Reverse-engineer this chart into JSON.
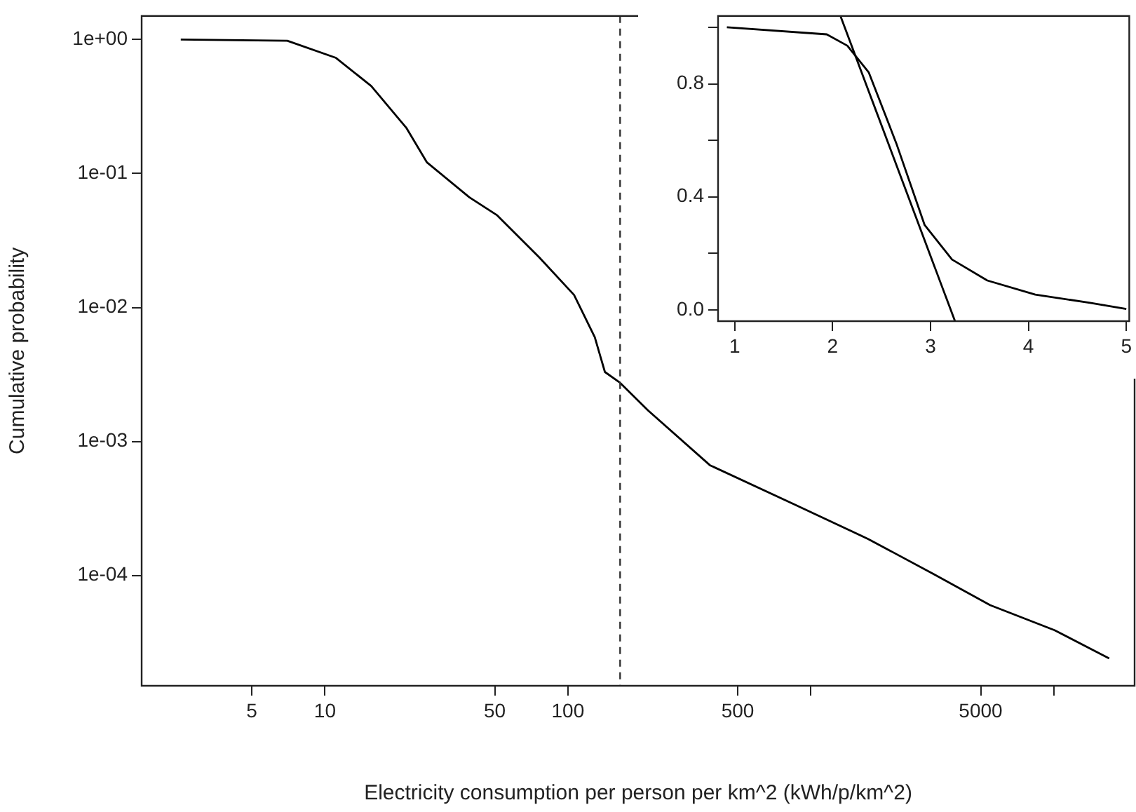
{
  "chart_data": [
    {
      "type": "line",
      "xlabel": "Electricity consumption per person per km^2 (kWh/p/km^2)",
      "ylabel": "Cumulative probability",
      "log": "xy",
      "marker": "none",
      "line_style": "solid",
      "xlim": [
        1.76,
        21500
      ],
      "xticks": [
        5,
        10,
        50,
        100,
        500,
        {
          "value": 1000,
          "label": null
        },
        5000,
        {
          "value": 10000,
          "label": null
        }
      ],
      "ylim": [
        1.5e-05,
        1.5
      ],
      "yticks": [
        {
          "value": 1,
          "label": "1e+00"
        },
        {
          "value": 0.1,
          "label": "1e-01"
        },
        {
          "value": 0.01,
          "label": "1e-02"
        },
        {
          "value": 0.001,
          "label": "1e-03"
        },
        {
          "value": 0.0001,
          "label": "1e-04"
        }
      ],
      "ref_lines": [
        {
          "axis": "x",
          "value": 164,
          "line_style": "dashed",
          "color": "#333333"
        }
      ],
      "x": [
        2.55,
        7.0,
        11.1,
        15.5,
        21.6,
        26.3,
        39.3,
        51.2,
        76.2,
        106,
        129,
        142,
        164,
        214,
        384,
        851,
        1722,
        3212,
        5470,
        10070,
        16900
      ],
      "series": [
        {
          "color": "#000000",
          "values": [
            1,
            0.98,
            0.73,
            0.45,
            0.22,
            0.121,
            0.0665,
            0.0487,
            0.0237,
            0.0124,
            0.006,
            0.0033,
            0.00274,
            0.0017,
            0.000665,
            0.00034,
            0.000187,
            0.000102,
            6e-05,
            3.9e-05,
            2.4e-05
          ]
        }
      ]
    },
    {
      "type": "line",
      "marker": "none",
      "line_style": "solid",
      "xlim": [
        0.83,
        5.03
      ],
      "xticks": [
        1,
        2,
        3,
        4,
        5
      ],
      "ylim": [
        -0.04,
        1.04
      ],
      "yticks": [
        {
          "value": 0,
          "label": "0.0"
        },
        {
          "value": 0.2,
          "label": null
        },
        {
          "value": 0.4,
          "label": "0.4"
        },
        {
          "value": 0.6,
          "label": null
        },
        {
          "value": 0.8,
          "label": "0.8"
        },
        {
          "value": 1,
          "label": null
        }
      ],
      "series": [
        {
          "color": "#000000",
          "x": [
            0.92,
            1.94,
            2.15,
            2.37,
            2.65,
            2.94,
            3.22,
            3.58,
            4.07,
            4.63,
            5.0
          ],
          "values": [
            1.0,
            0.975,
            0.935,
            0.84,
            0.59,
            0.3,
            0.178,
            0.104,
            0.054,
            0.025,
            0.003
          ]
        },
        {
          "color": "#000000",
          "x": [
            2.08,
            3.25
          ],
          "values": [
            1.04,
            -0.04
          ]
        }
      ]
    }
  ]
}
